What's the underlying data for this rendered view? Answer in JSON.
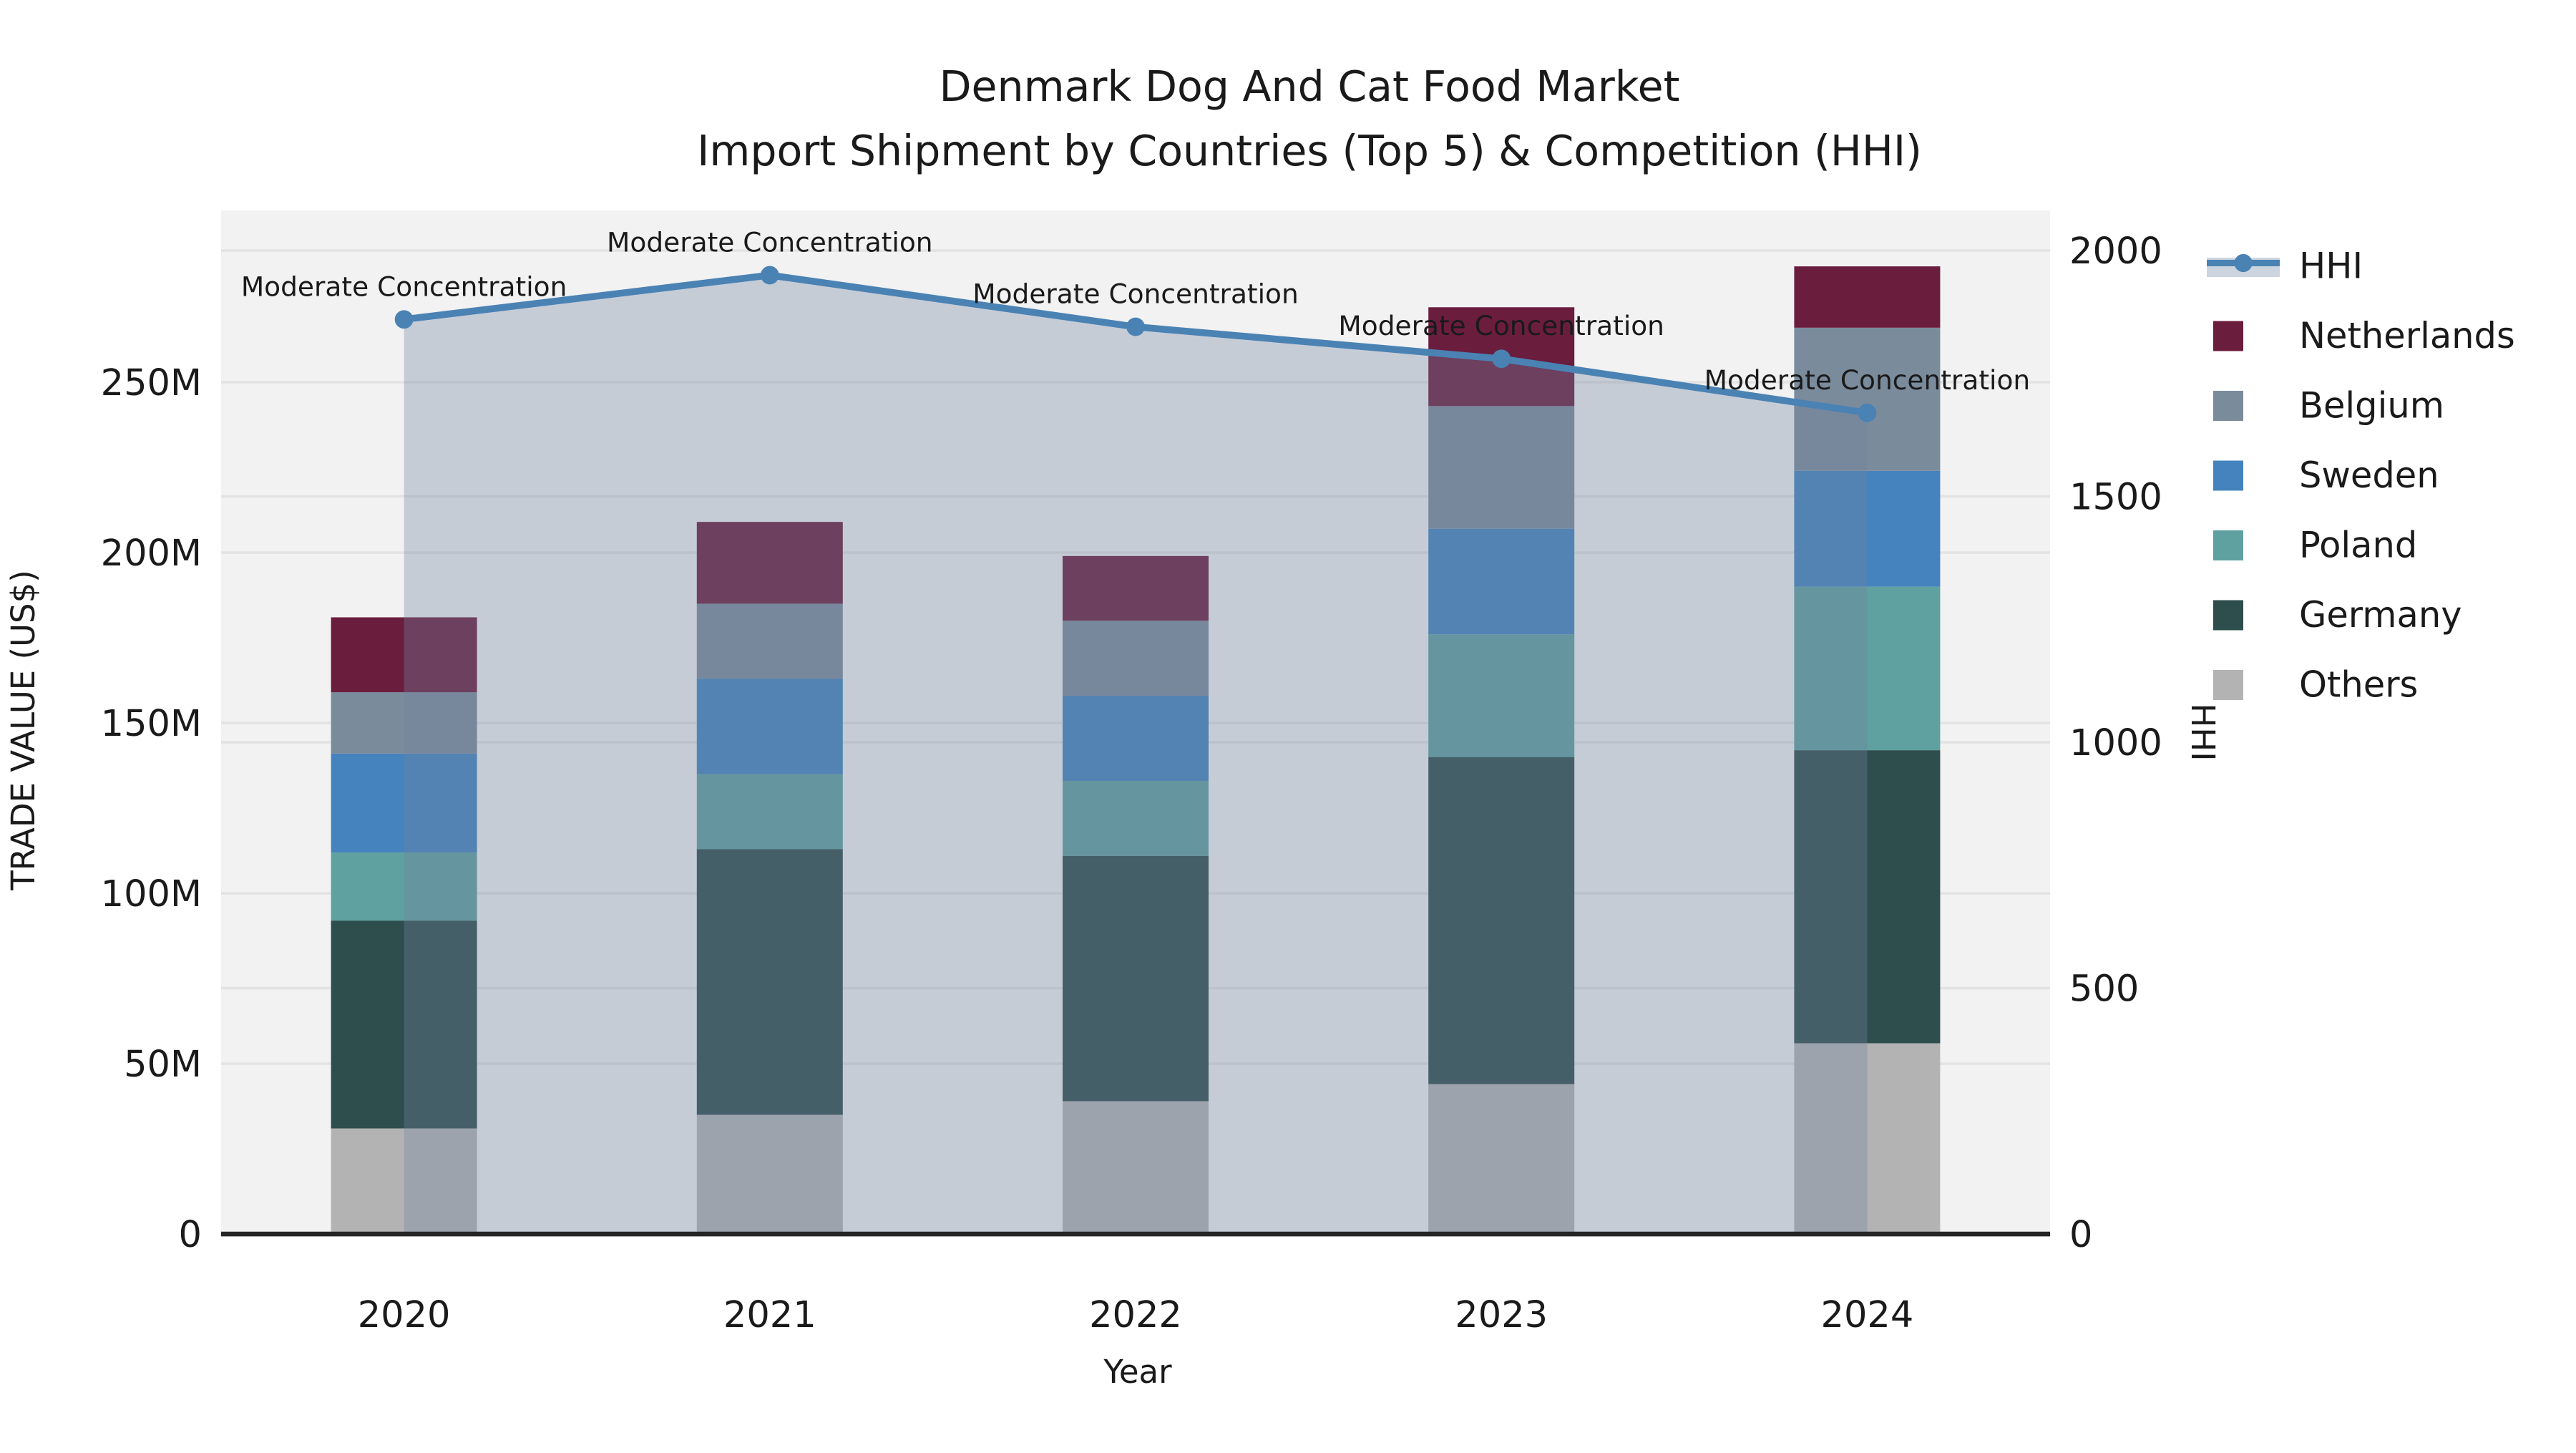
{
  "chart_data": {
    "type": "combo: stacked bar (left axis) + line with area fill (right axis)",
    "title_line1": "Denmark Dog And Cat Food Market",
    "title_line2": "Import Shipment by Countries (Top 5) & Competition (HHI)",
    "xlabel": "Year",
    "ylabel_left": "TRADE VALUE (US$)",
    "ylabel_right": "HHI",
    "categories": [
      "2020",
      "2021",
      "2022",
      "2023",
      "2024"
    ],
    "bar_unit": "Million US$",
    "series": [
      {
        "name": "Netherlands",
        "color": "#6B1D3E",
        "values": [
          22,
          24,
          19,
          29,
          18
        ]
      },
      {
        "name": "Belgium",
        "color": "#7A8B9C",
        "values": [
          18,
          22,
          22,
          36,
          42
        ]
      },
      {
        "name": "Sweden",
        "color": "#4483BD",
        "values": [
          29,
          28,
          25,
          31,
          34
        ]
      },
      {
        "name": "Poland",
        "color": "#5FA0A0",
        "values": [
          20,
          22,
          22,
          36,
          48
        ]
      },
      {
        "name": "Germany",
        "color": "#2E4D4D",
        "values": [
          61,
          78,
          72,
          96,
          86
        ]
      },
      {
        "name": "Others",
        "color": "#B3B3B3",
        "values": [
          31,
          35,
          39,
          44,
          56
        ]
      }
    ],
    "stack_order_bottom_to_top": [
      "Others",
      "Germany",
      "Poland",
      "Sweden",
      "Belgium",
      "Netherlands"
    ],
    "bar_totals": [
      181,
      209,
      199,
      272,
      284
    ],
    "line_series": {
      "name": "HHI",
      "color": "#4A82B4",
      "area_fill": "rgba(113,133,160,0.34)",
      "values": [
        1860,
        1950,
        1845,
        1780,
        1670
      ]
    },
    "annotations": [
      "Moderate Concentration",
      "Moderate Concentration",
      "Moderate Concentration",
      "Moderate Concentration",
      "Moderate Concentration"
    ],
    "y_left": {
      "ticks": [
        0,
        50,
        100,
        150,
        200,
        250
      ],
      "labels": [
        "0",
        "50M",
        "100M",
        "150M",
        "200M",
        "250M"
      ],
      "max": 250
    },
    "y_right": {
      "ticks": [
        0,
        500,
        1000,
        1500,
        2000
      ],
      "labels": [
        "0",
        "500",
        "1000",
        "1500",
        "2000"
      ],
      "max": 2000
    },
    "legend_items": [
      {
        "label": "HHI",
        "type": "line",
        "color": "#4A82B4",
        "band": "#CCD4DF"
      },
      {
        "label": "Netherlands",
        "type": "swatch",
        "color": "#6B1D3E"
      },
      {
        "label": "Belgium",
        "type": "swatch",
        "color": "#7A8B9C"
      },
      {
        "label": "Sweden",
        "type": "swatch",
        "color": "#4483BD"
      },
      {
        "label": "Poland",
        "type": "swatch",
        "color": "#5FA0A0"
      },
      {
        "label": "Germany",
        "type": "swatch",
        "color": "#2E4D4D"
      },
      {
        "label": "Others",
        "type": "swatch",
        "color": "#B3B3B3"
      }
    ],
    "layout": {
      "plot_bg": "#F2F2F2",
      "grid_color": "#E3E3E3",
      "axis_line_color": "#262626",
      "legend_position": "right-outside",
      "grid": "on (both axes horizontal gridlines)"
    }
  }
}
